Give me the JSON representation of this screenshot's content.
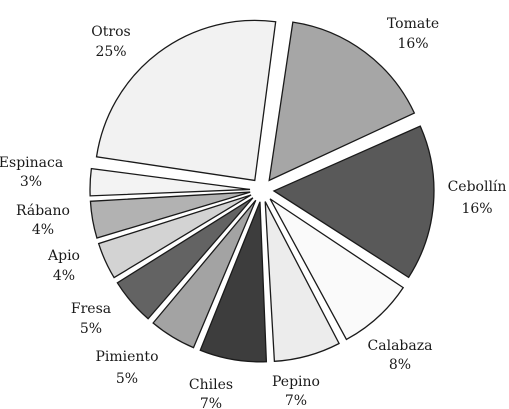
{
  "chart_data": {
    "type": "pie",
    "title": "",
    "start_angle_deg": 82,
    "direction": "clockwise",
    "exploded": true,
    "slices": [
      {
        "label": "Tomate",
        "value": 16,
        "value_label": "16%",
        "color": "#a6a6a6"
      },
      {
        "label": "Cebollín",
        "value": 16,
        "value_label": "16%",
        "color": "#595959"
      },
      {
        "label": "Calabaza",
        "value": 8,
        "value_label": "8%",
        "color": "#fafafa"
      },
      {
        "label": "Pepino",
        "value": 7,
        "value_label": "7%",
        "color": "#ececec"
      },
      {
        "label": "Chiles",
        "value": 7,
        "value_label": "7%",
        "color": "#3d3d3d"
      },
      {
        "label": "Pimiento",
        "value": 5,
        "value_label": "5%",
        "color": "#a3a3a3"
      },
      {
        "label": "Fresa",
        "value": 5,
        "value_label": "5%",
        "color": "#636363"
      },
      {
        "label": "Apio",
        "value": 4,
        "value_label": "4%",
        "color": "#d3d3d3"
      },
      {
        "label": "Rábano",
        "value": 4,
        "value_label": "4%",
        "color": "#b2b2b2"
      },
      {
        "label": "Espinaca",
        "value": 3,
        "value_label": "3%",
        "color": "#f3f3f3"
      },
      {
        "label": "Otros",
        "value": 25,
        "value_label": "25%",
        "color": "#f2f2f2"
      }
    ]
  }
}
